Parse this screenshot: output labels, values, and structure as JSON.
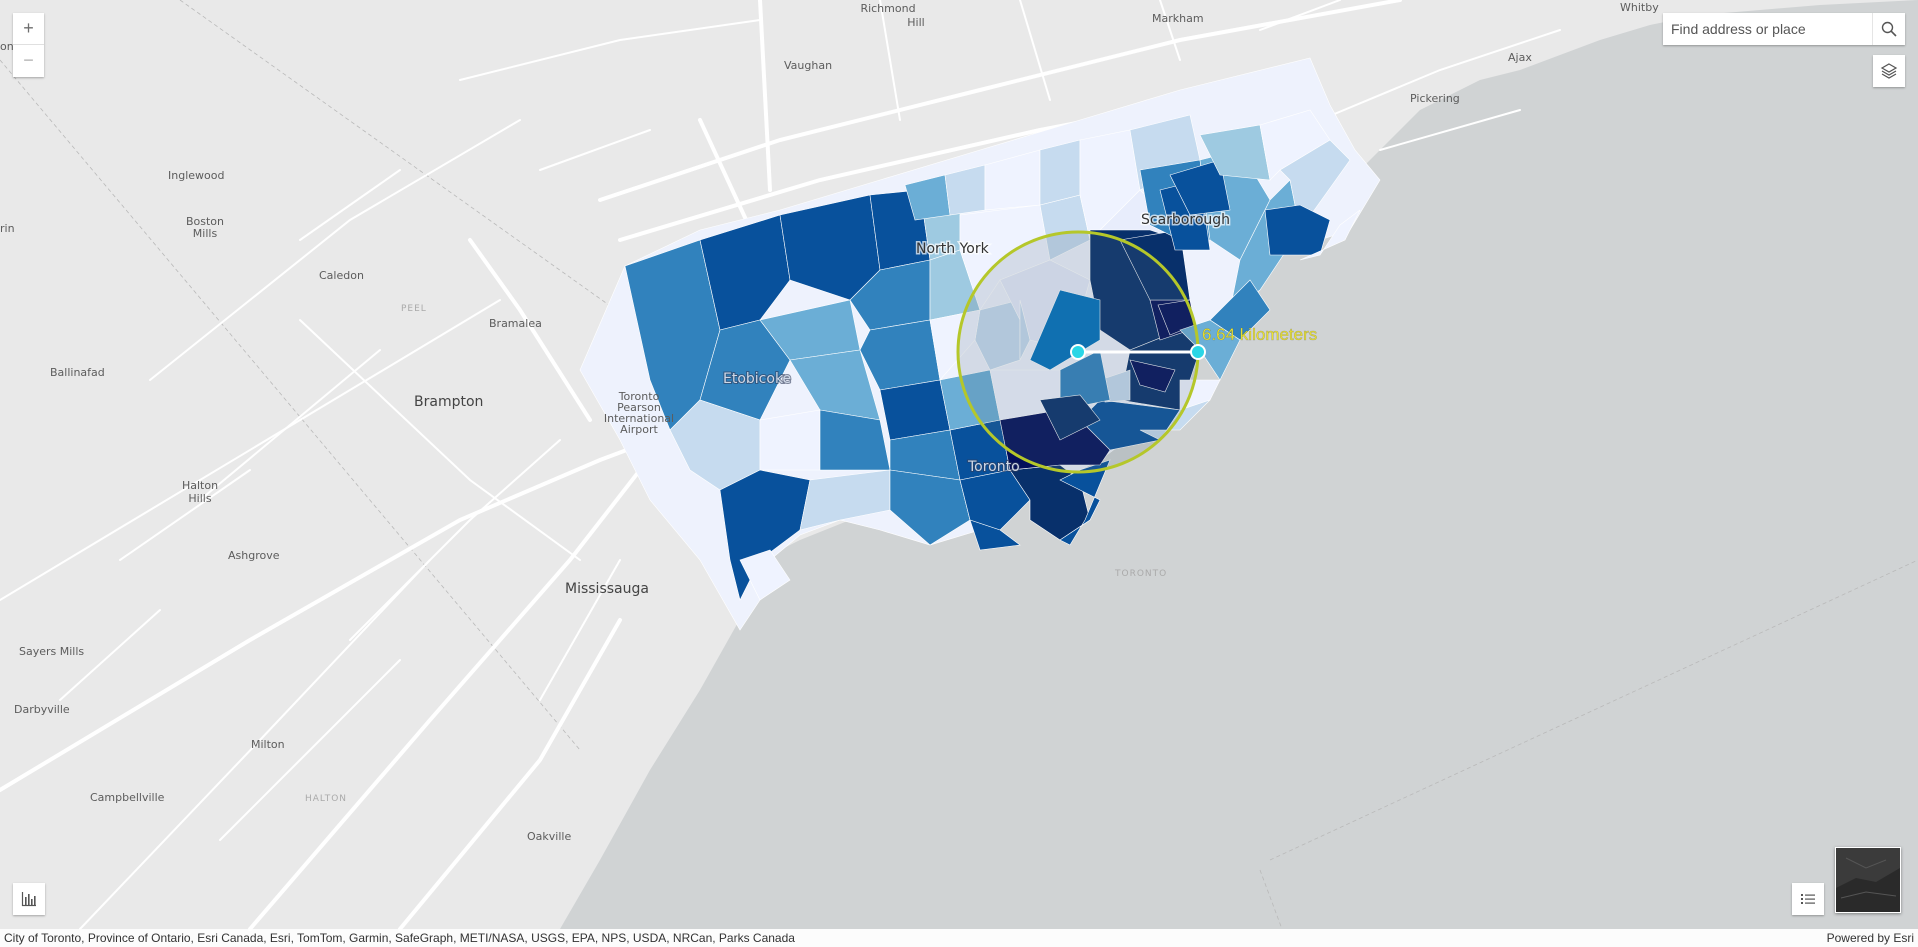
{
  "search": {
    "placeholder": "Find address or place"
  },
  "zoom": {
    "in_label": "+",
    "out_label": "−"
  },
  "measurement": {
    "label": "6.64 kilometers"
  },
  "attribution": {
    "sources": "City of Toronto, Province of Ontario, Esri Canada, Esri, TomTom, Garmin, SafeGraph, METI/NASA, USGS, EPA, NPS, USDA, NRCan, Parks Canada",
    "powered_by": "Powered by Esri"
  },
  "places": {
    "richmond_hill_1": "Richmond",
    "richmond_hill_2": "Hill",
    "markham": "Markham",
    "whitby": "Whitby",
    "vaughan": "Vaughan",
    "ajax": "Ajax",
    "pickering": "Pickering",
    "inglewood": "Inglewood",
    "boston_mills_1": "Boston",
    "boston_mills_2": "Mills",
    "caledon": "Caledon",
    "peel": "PEEL",
    "bramalea": "Bramalea",
    "ballinafad": "Ballinafad",
    "brampton": "Brampton",
    "airport_1": "Toronto",
    "airport_2": "Pearson",
    "airport_3": "International",
    "airport_4": "Airport",
    "halton_hills_1": "Halton",
    "halton_hills_2": "Hills",
    "ashgrove": "Ashgrove",
    "mississauga": "Mississauga",
    "sayers_mills": "Sayers Mills",
    "darbyville": "Darbyville",
    "milton": "Milton",
    "halton": "HALTON",
    "campbellville": "Campbellville",
    "oakville": "Oakville",
    "north_york": "North York",
    "scarborough": "Scarborough",
    "etobicoke": "Etobicoke",
    "toronto": "Toronto",
    "toronto_water": "TORONTO",
    "edge_on": "on",
    "edge_in": "rin"
  },
  "colors": {
    "land": "#e9e9e9",
    "water": "#d0d3d4",
    "roads": "#ffffff",
    "choropleth_ramp": [
      "#eff3ff",
      "#c6dbef",
      "#9ecae1",
      "#6baed6",
      "#3182bd",
      "#08519c",
      "#08306b",
      "#020f5a"
    ],
    "measure_circle": "#b5c72a",
    "measure_text": "#f2e930",
    "measure_handle": "#2ad6e6"
  },
  "icons": {
    "search": "search-icon",
    "layers": "layers-icon",
    "chart": "bar-chart-icon",
    "legend": "list-icon",
    "basemap": "basemap-gallery-thumbnail"
  }
}
